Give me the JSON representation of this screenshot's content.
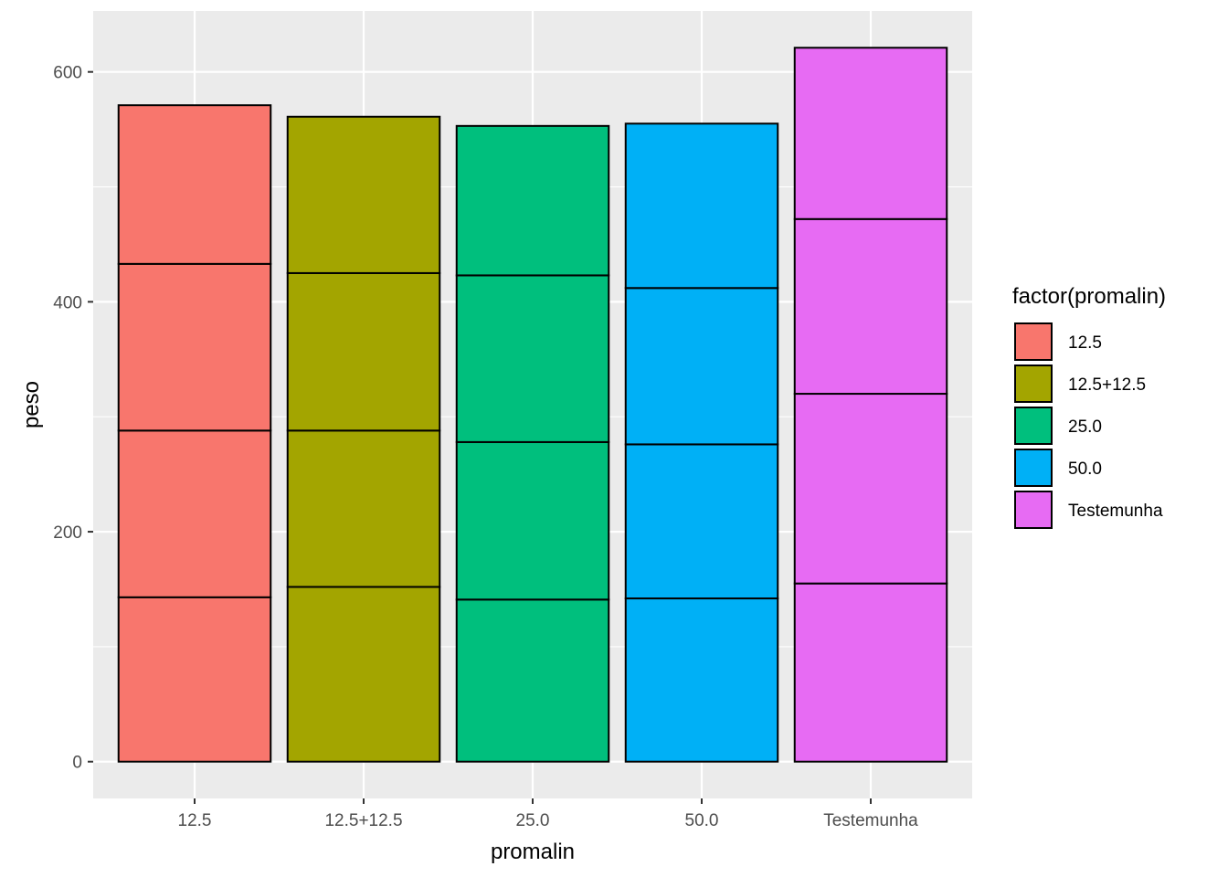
{
  "chart_data": {
    "type": "bar",
    "stacked": true,
    "xlabel": "promalin",
    "ylabel": "peso",
    "categories": [
      "12.5",
      "12.5+12.5",
      "25.0",
      "50.0",
      "Testemunha"
    ],
    "stacks": [
      [
        143,
        145,
        145,
        138
      ],
      [
        152,
        136,
        137,
        136
      ],
      [
        141,
        137,
        145,
        130
      ],
      [
        142,
        134,
        136,
        143
      ],
      [
        155,
        165,
        152,
        149
      ]
    ],
    "totals": [
      571,
      560,
      553,
      555,
      621
    ],
    "ylim": [
      -32,
      653
    ],
    "yticks": [
      0,
      200,
      400,
      600
    ],
    "grid": true,
    "legend": {
      "title": "factor(promalin)",
      "position": "right",
      "entries": [
        "12.5",
        "12.5+12.5",
        "25.0",
        "50.0",
        "Testemunha"
      ]
    },
    "colors": {
      "12.5": "#F8766D",
      "12.5+12.5": "#A3A500",
      "25.0": "#00BF7D",
      "50.0": "#00B0F6",
      "Testemunha": "#E76BF3"
    },
    "panel_background": "#EBEBEB",
    "grid_color": "#FFFFFF"
  }
}
